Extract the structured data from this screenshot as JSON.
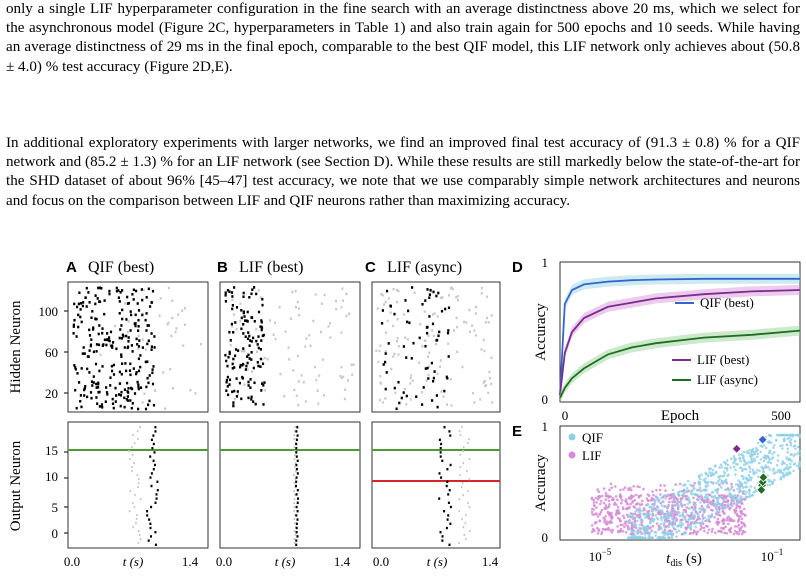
{
  "paragraphs": [
    "only a single LIF hyperparameter configuration in the fine search with an average distinctness above 20 ms, which we select for the asynchronous model (Figure 2C, hyperparameters in Table 1) and also train again for 500 epochs and 10 seeds. While having an average distinctness of 29 ms in the final epoch, comparable to the best QIF model, this LIF network only achieves about (50.8 ± 4.0) % test accuracy (Figure 2D,E).",
    "In additional exploratory experiments with larger networks, we find an improved final test accuracy of (91.3 ± 0.8) % for a QIF network and (85.2 ± 1.3) % for an LIF network (see Section D). While these results are still markedly below the state-of-the-art for the SHD dataset of about 96% [45–47] test accuracy, we note that we use comparably simple network architectures and neurons and focus on the comparison between LIF and QIF neurons rather than maximizing accuracy."
  ],
  "figure": {
    "colors": {
      "qif_best": "#3366cc",
      "qif_light": "#8fd0e6",
      "lif_best": "#7b2d8e",
      "lif_light": "#d68bd6",
      "lif_async": "#1f6e1f",
      "lif_async_light": "#8fcf8f",
      "target_line": "#4e9a3a",
      "wrong_line": "#d62728",
      "spike_dark": "#000000",
      "spike_light": "#c8c8c8"
    },
    "raster_panels": [
      {
        "letter": "A",
        "title": "QIF (best)"
      },
      {
        "letter": "B",
        "title": "LIF (best)"
      },
      {
        "letter": "C",
        "title": "LIF (async)"
      }
    ],
    "hidden_ylabel": "Hidden Neuron",
    "output_ylabel": "Output Neuron",
    "hidden_yticks": [
      "20",
      "60",
      "100"
    ],
    "output_yticks": [
      "0",
      "5",
      "10",
      "15"
    ],
    "time_xticks": [
      "0.0",
      "1.4"
    ],
    "time_xlabel": "t (s)",
    "panel_d": {
      "letter": "D",
      "ylabel": "Accuracy",
      "xlabel": "Epoch",
      "xticks": [
        "0",
        "500"
      ],
      "yticks": [
        "0",
        "1"
      ],
      "legend": [
        "QIF (best)",
        "LIF (best)",
        "LIF (async)"
      ]
    },
    "panel_e": {
      "letter": "E",
      "ylabel": "Accuracy",
      "xlabel": "t",
      "xlabel_sub": "dis",
      "xlabel_unit": "(s)",
      "yticks": [
        "0",
        "1"
      ],
      "xticks": [
        "10",
        "10"
      ],
      "xtick_exps": [
        "−5",
        "−1"
      ],
      "legend": [
        "QIF",
        "LIF"
      ]
    }
  },
  "chart_data": [
    {
      "type": "line",
      "title": "",
      "xlabel": "Epoch",
      "ylabel": "Accuracy",
      "xlim": [
        0,
        500
      ],
      "ylim": [
        0,
        1
      ],
      "x": [
        0,
        10,
        25,
        50,
        100,
        150,
        200,
        300,
        400,
        500
      ],
      "series": [
        {
          "name": "QIF (best)",
          "values": [
            0.05,
            0.7,
            0.8,
            0.84,
            0.86,
            0.87,
            0.875,
            0.88,
            0.88,
            0.88
          ]
        },
        {
          "name": "LIF (best)",
          "values": [
            0.05,
            0.35,
            0.5,
            0.6,
            0.68,
            0.71,
            0.74,
            0.77,
            0.79,
            0.8
          ]
        },
        {
          "name": "LIF (async)",
          "values": [
            0.03,
            0.1,
            0.17,
            0.24,
            0.34,
            0.39,
            0.42,
            0.46,
            0.48,
            0.51
          ]
        }
      ]
    },
    {
      "type": "scatter",
      "title": "",
      "xlabel": "t_dis (s)",
      "ylabel": "Accuracy",
      "xscale": "log",
      "xlim": [
        1e-06,
        0.2
      ],
      "ylim": [
        0,
        1
      ],
      "series": [
        {
          "name": "QIF",
          "x": [
            0.0001,
            0.001,
            0.01,
            0.05,
            0.1
          ],
          "values": [
            0.2,
            0.45,
            0.6,
            0.8,
            0.85
          ]
        },
        {
          "name": "LIF",
          "x": [
            1e-05,
            0.0001,
            0.001,
            0.003
          ],
          "values": [
            0.2,
            0.3,
            0.25,
            0.15
          ]
        },
        {
          "name": "QIF (best)",
          "x": [
            0.03
          ],
          "values": [
            0.88
          ]
        },
        {
          "name": "LIF (best)",
          "x": [
            0.008
          ],
          "values": [
            0.8
          ]
        },
        {
          "name": "LIF (async)",
          "x": [
            0.029,
            0.03,
            0.031,
            0.028
          ],
          "values": [
            0.48,
            0.51,
            0.55,
            0.44
          ]
        }
      ]
    }
  ]
}
